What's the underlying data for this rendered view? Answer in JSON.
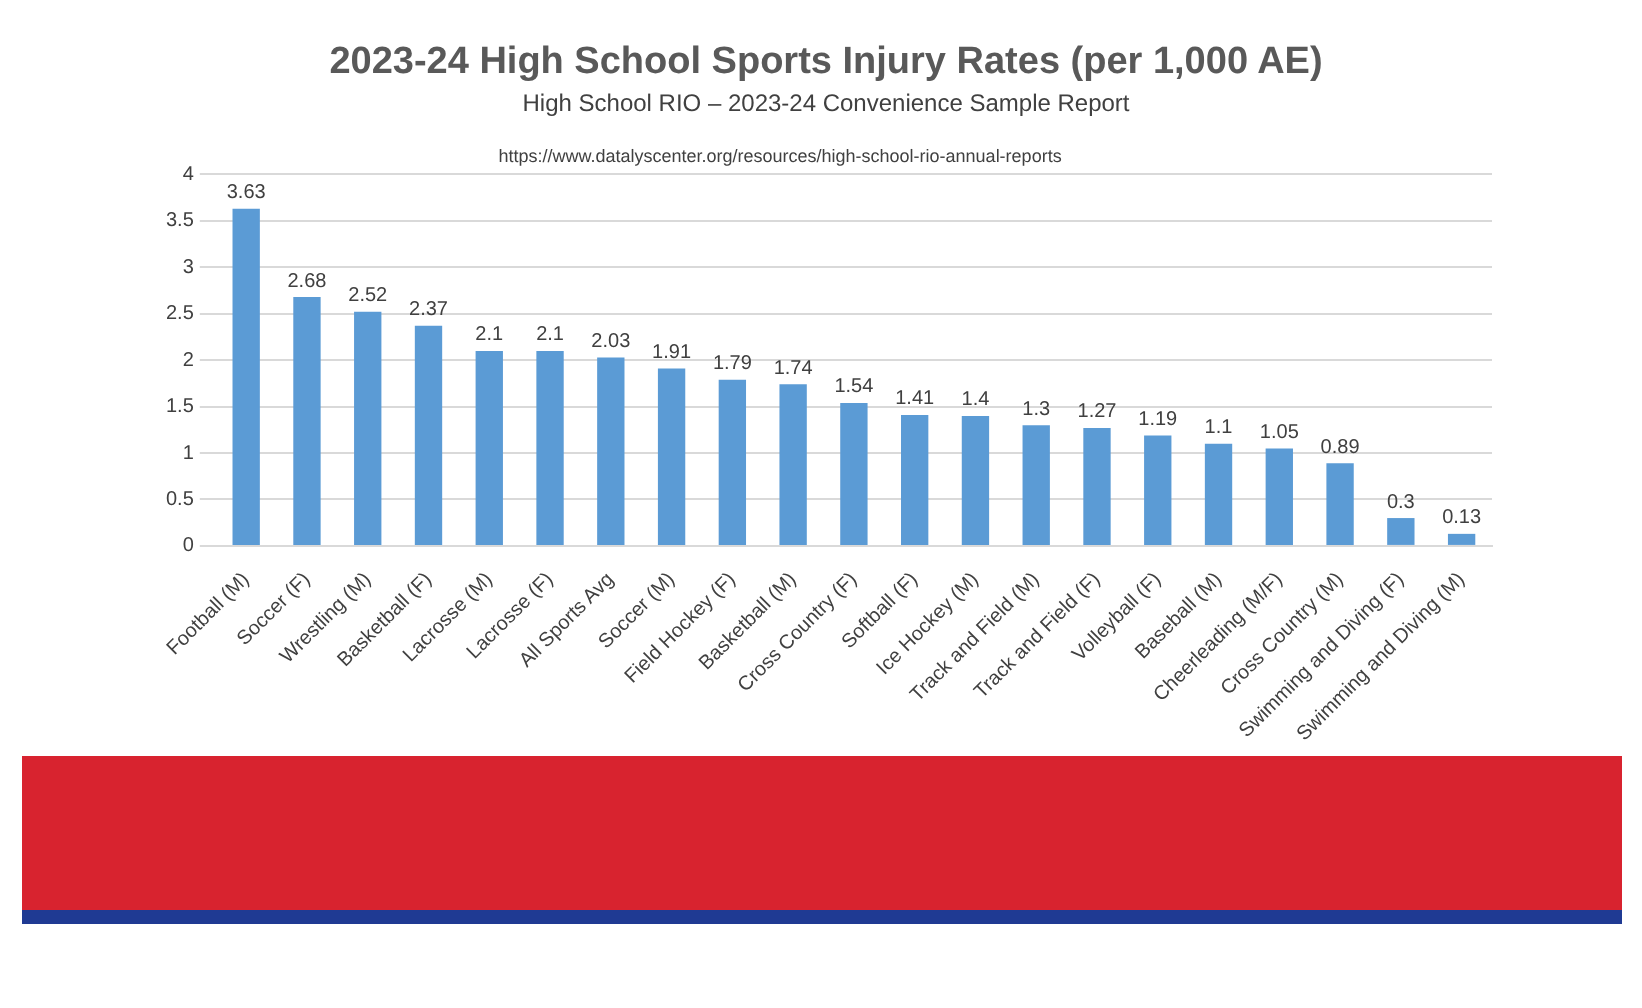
{
  "chart_data": {
    "type": "bar",
    "title": "2023-24 High School Sports Injury Rates (per 1,000 AE)",
    "subtitle": "High School RIO – 2023-24 Convenience Sample Report",
    "annotations": [
      "https://www.datalyscenter.org/resources/high-school-rio-annual-reports"
    ],
    "categories": [
      "Football (M)",
      "Soccer (F)",
      "Wrestling (M)",
      "Basketball (F)",
      "Lacrosse (M)",
      "Lacrosse (F)",
      "All Sports Avg",
      "Soccer (M)",
      "Field Hockey (F)",
      "Basketball (M)",
      "Cross Country (F)",
      "Softball (F)",
      "Ice Hockey (M)",
      "Track and Field (M)",
      "Track and Field (F)",
      "Volleyball (F)",
      "Baseball (M)",
      "Cheerleading (M/F)",
      "Cross Country (M)",
      "Swimming and Diving (F)",
      "Swimming and Diving (M)"
    ],
    "values": [
      3.63,
      2.68,
      2.52,
      2.37,
      2.1,
      2.1,
      2.03,
      1.91,
      1.79,
      1.74,
      1.54,
      1.41,
      1.4,
      1.3,
      1.27,
      1.19,
      1.1,
      1.05,
      0.89,
      0.3,
      0.13
    ],
    "color": "#5b9bd5",
    "ylim": [
      0,
      4
    ],
    "yticks": [
      0,
      0.5,
      1,
      1.5,
      2,
      2.5,
      3,
      3.5,
      4
    ],
    "grid": "y",
    "data_labels": true,
    "legend": false
  }
}
